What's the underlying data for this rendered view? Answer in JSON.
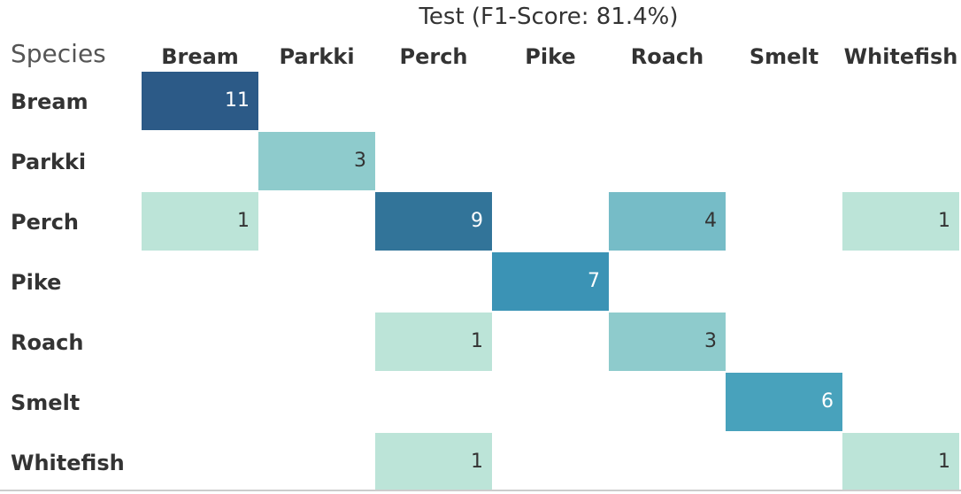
{
  "chart_data": {
    "type": "heatmap",
    "title": "Test (F1-Score: 81.4%)",
    "row_header": "Species",
    "rows": [
      "Bream",
      "Parkki",
      "Perch",
      "Pike",
      "Roach",
      "Smelt",
      "Whitefish"
    ],
    "columns": [
      "Bream",
      "Parkki",
      "Perch",
      "Pike",
      "Roach",
      "Smelt",
      "Whitefish"
    ],
    "values": [
      [
        11,
        null,
        null,
        null,
        null,
        null,
        null
      ],
      [
        null,
        3,
        null,
        null,
        null,
        null,
        null
      ],
      [
        1,
        null,
        9,
        null,
        4,
        null,
        1
      ],
      [
        null,
        null,
        null,
        7,
        null,
        null,
        null
      ],
      [
        null,
        null,
        1,
        null,
        3,
        null,
        null
      ],
      [
        null,
        null,
        null,
        null,
        null,
        6,
        null
      ],
      [
        null,
        null,
        1,
        null,
        null,
        null,
        1
      ]
    ],
    "color_scale": [
      {
        "value": 1,
        "color": "#bce4d8"
      },
      {
        "value": 3,
        "color": "#8ecbcc"
      },
      {
        "value": 4,
        "color": "#76bcc7"
      },
      {
        "value": 6,
        "color": "#48a2bc"
      },
      {
        "value": 7,
        "color": "#3b93b5"
      },
      {
        "value": 9,
        "color": "#327499"
      },
      {
        "value": 11,
        "color": "#2c5a87"
      }
    ],
    "dark_text_color": "#333333",
    "light_text_color": "#ffffff"
  }
}
